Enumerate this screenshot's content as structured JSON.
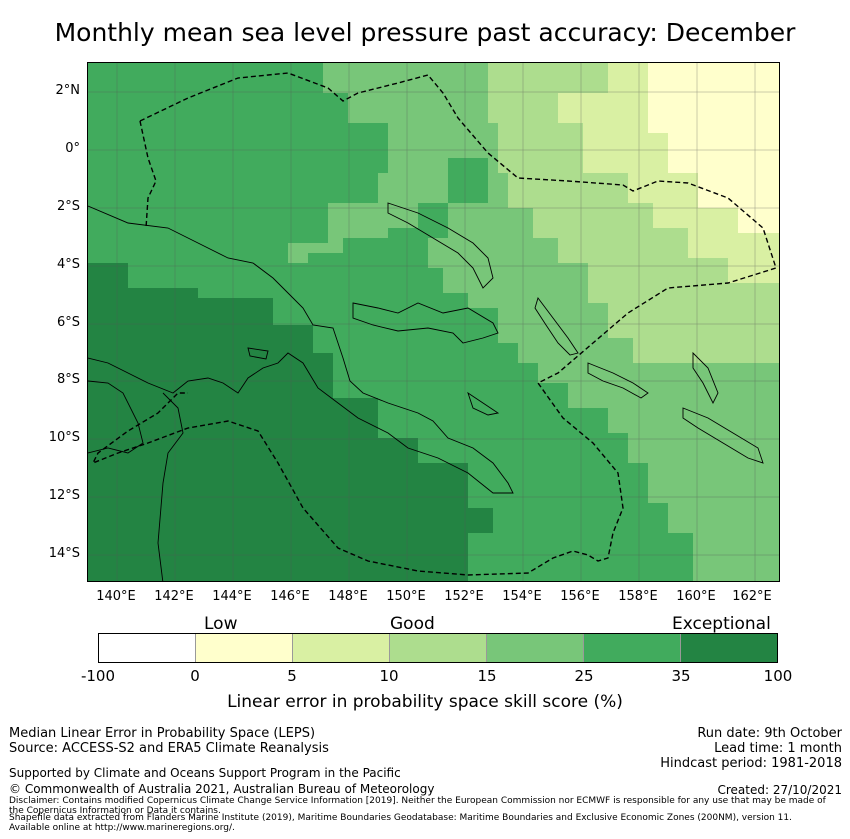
{
  "title": "Monthly mean sea level pressure past accuracy: December",
  "map": {
    "lat_labels": [
      "2°N",
      "0°",
      "2°S",
      "4°S",
      "6°S",
      "8°S",
      "10°S",
      "12°S",
      "14°S"
    ],
    "lon_labels": [
      "140°E",
      "142°E",
      "144°E",
      "146°E",
      "148°E",
      "150°E",
      "152°E",
      "154°E",
      "156°E",
      "158°E",
      "160°E",
      "162°E"
    ]
  },
  "colorbar": {
    "categories": [
      "Low",
      "Good",
      "Exceptional"
    ],
    "ticks": [
      "-100",
      "0",
      "5",
      "10",
      "15",
      "25",
      "35",
      "100"
    ],
    "colors": [
      "#ffffff",
      "#ffffcc",
      "#d9f0a3",
      "#addd8e",
      "#78c679",
      "#41ab5d",
      "#238443"
    ],
    "label": "Linear error in probability space skill score (%)"
  },
  "footer": {
    "method": "Median Linear Error in Probability Space (LEPS)",
    "source": "Source: ACCESS-S2 and ERA5 Climate Reanalysis",
    "support": "Supported by Climate and Oceans Support Program in the Pacific",
    "copyright": "© Commonwealth of Australia 2021, Australian Bureau of Meteorology",
    "disclaimer1": "Disclaimer: Contains modified Copernicus Climate Change Service Information [2019]. Neither the European Commission nor ECMWF is responsible for any use that may be made of",
    "disclaimer2": "the Copernicus Information or Data it contains.",
    "shapefile1": "Shapefile data extracted from Flanders Marine Institute (2019), Maritime Boundaries Geodatabase: Maritime Boundaries and Exclusive Economic Zones (200NM), version 11.",
    "shapefile2": "Available online at http://www.marineregions.org/.",
    "run_date": "Run date: 9th October",
    "lead_time": "Lead time: 1 month",
    "hindcast": "Hindcast period: 1981-2018",
    "created": "Created: 27/10/2021"
  }
}
